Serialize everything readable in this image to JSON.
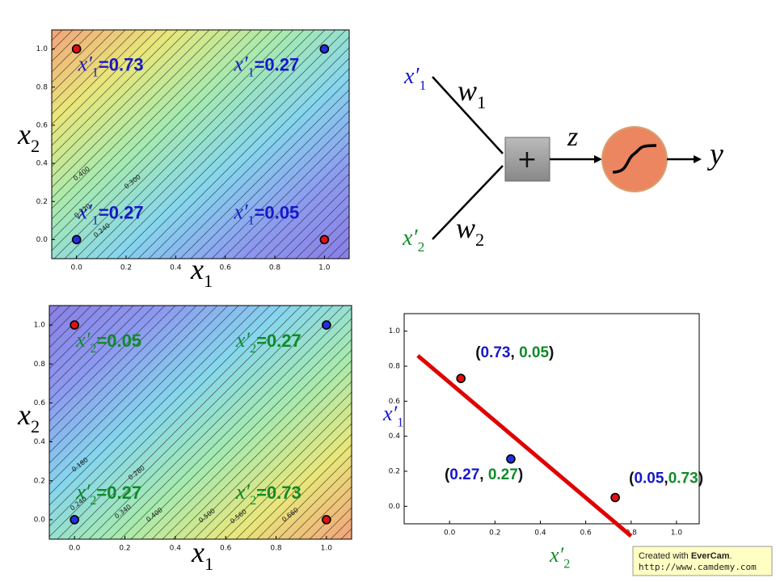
{
  "chart_data": [
    {
      "type": "contour",
      "xlim": [
        -0.1,
        1.1
      ],
      "ylim": [
        -0.1,
        1.1
      ],
      "xticks": [
        {
          "value": 0,
          "label": "0.0"
        },
        {
          "value": 0.2,
          "label": "0.2"
        },
        {
          "value": 0.4,
          "label": "0.4"
        },
        {
          "value": 0.6,
          "label": "0.6"
        },
        {
          "value": 0.8,
          "label": "0.8"
        },
        {
          "value": 1,
          "label": "1.0"
        }
      ],
      "yticks": [
        {
          "value": 0,
          "label": "0.0"
        },
        {
          "value": 0.2,
          "label": "0.2"
        },
        {
          "value": 0.4,
          "label": "0.4"
        },
        {
          "value": 0.6,
          "label": "0.6"
        },
        {
          "value": 0.8,
          "label": "0.8"
        },
        {
          "value": 1,
          "label": "1.0"
        }
      ],
      "xlabel": {
        "text": "x",
        "sub": "1",
        "color": "#000000"
      },
      "ylabel": {
        "text": "x",
        "sub": "2",
        "color": "#000000"
      },
      "colors": [
        "#f2a27a",
        "#e9e77a",
        "#a6eab0",
        "#86d6ee",
        "#8c9af0",
        "#8a7fe6"
      ],
      "points": {
        "x": [
          0,
          1,
          0,
          1
        ],
        "y": [
          1,
          1,
          0,
          0
        ],
        "colors": [
          "#e01010",
          "#2030e0",
          "#2030e0",
          "#e01010"
        ]
      },
      "annotation_color": "#1818c8",
      "annotations": [
        {
          "text": "x′",
          "sub": "1",
          "label": "=0.73"
        },
        {
          "text": "x′",
          "sub": "1",
          "label": "=0.27"
        },
        {
          "text": "x′",
          "sub": "1",
          "label": "=0.27"
        },
        {
          "text": "x′",
          "sub": "1",
          "label": "=0.05"
        }
      ],
      "contour_labels": [
        "0.400",
        "0.300",
        "0.320",
        "0.240"
      ]
    },
    {
      "type": "contour",
      "xlim": [
        -0.1,
        1.1
      ],
      "ylim": [
        -0.1,
        1.1
      ],
      "xticks": [
        {
          "value": 0,
          "label": "0.0"
        },
        {
          "value": 0.2,
          "label": "0.2"
        },
        {
          "value": 0.4,
          "label": "0.4"
        },
        {
          "value": 0.6,
          "label": "0.6"
        },
        {
          "value": 0.8,
          "label": "0.8"
        },
        {
          "value": 1,
          "label": "1.0"
        }
      ],
      "yticks": [
        {
          "value": 0,
          "label": "0.0"
        },
        {
          "value": 0.2,
          "label": "0.2"
        },
        {
          "value": 0.4,
          "label": "0.4"
        },
        {
          "value": 0.6,
          "label": "0.6"
        },
        {
          "value": 0.8,
          "label": "0.8"
        },
        {
          "value": 1,
          "label": "1.0"
        }
      ],
      "xlabel": {
        "text": "x",
        "sub": "1",
        "color": "#000000"
      },
      "ylabel": {
        "text": "x",
        "sub": "2",
        "color": "#000000"
      },
      "colors": [
        "#8a7fe6",
        "#8c9af0",
        "#86d6ee",
        "#a6eab0",
        "#e9e77a",
        "#f2a27a"
      ],
      "points": {
        "x": [
          0,
          1,
          0,
          1
        ],
        "y": [
          1,
          1,
          0,
          0
        ],
        "colors": [
          "#e01010",
          "#2030e0",
          "#2030e0",
          "#e01010"
        ]
      },
      "annotation_color": "#118a2a",
      "annotations": [
        {
          "text": "x′",
          "sub": "2",
          "label": "=0.05"
        },
        {
          "text": "x′",
          "sub": "2",
          "label": "=0.27"
        },
        {
          "text": "x′",
          "sub": "2",
          "label": "=0.27"
        },
        {
          "text": "x′",
          "sub": "2",
          "label": "=0.73"
        }
      ],
      "contour_labels": [
        "0.180",
        "0.280",
        "0.240",
        "0.340",
        "0.400",
        "0.500",
        "0.560",
        "0.660"
      ]
    },
    {
      "type": "scatter",
      "xlim": [
        -0.2,
        1.1
      ],
      "ylim": [
        -0.1,
        1.1
      ],
      "xticks": [
        {
          "value": 0,
          "label": "0.0"
        },
        {
          "value": 0.2,
          "label": "0.2"
        },
        {
          "value": 0.4,
          "label": "0.4"
        },
        {
          "value": 0.6,
          "label": "0.6"
        },
        {
          "value": 0.8,
          "label": "0.8"
        },
        {
          "value": 1,
          "label": "1.0"
        }
      ],
      "yticks": [
        {
          "value": 0,
          "label": "0.0"
        },
        {
          "value": 0.2,
          "label": "0.2"
        },
        {
          "value": 0.4,
          "label": "0.4"
        },
        {
          "value": 0.6,
          "label": "0.6"
        },
        {
          "value": 0.8,
          "label": "0.8"
        },
        {
          "value": 1,
          "label": "1.0"
        }
      ],
      "xlabel": {
        "text": "x′",
        "sub": "2",
        "color": "#118a2a"
      },
      "ylabel": {
        "text": "x′",
        "sub": "1",
        "color": "#1818c8"
      },
      "points": {
        "x": [
          0.05,
          0.27,
          0.73
        ],
        "y": [
          0.73,
          0.27,
          0.05
        ],
        "colors": [
          "#e01010",
          "#2030e0",
          "#e01010"
        ]
      },
      "line": {
        "x": [
          -0.14,
          0.8
        ],
        "y": [
          0.86,
          -0.17
        ],
        "color": "#e00000"
      },
      "label_colors": [
        "#111111",
        "#1818c8",
        "#111111",
        "#118a2a",
        "#111111"
      ],
      "point_labels": [
        [
          "(",
          "0.73",
          ", ",
          "0.05",
          ")"
        ],
        [
          "(",
          "0.27",
          ", ",
          "0.27",
          ")"
        ],
        [
          "(",
          "0.05",
          ",",
          "0.73",
          ")"
        ]
      ]
    }
  ],
  "diagram": {
    "inputs": [
      {
        "text": "x′",
        "sub": "1",
        "color": "#1818c8"
      },
      {
        "text": "x′",
        "sub": "2",
        "color": "#118a2a"
      }
    ],
    "weights": [
      {
        "text": "w",
        "sub": "1"
      },
      {
        "text": "w",
        "sub": "2"
      }
    ],
    "sum": "+",
    "z": "z",
    "output": "y"
  },
  "footer": {
    "prefix": "Created with ",
    "brand": "EverCam",
    "suffix": ".",
    "url": "http://www.camdemy.com"
  }
}
